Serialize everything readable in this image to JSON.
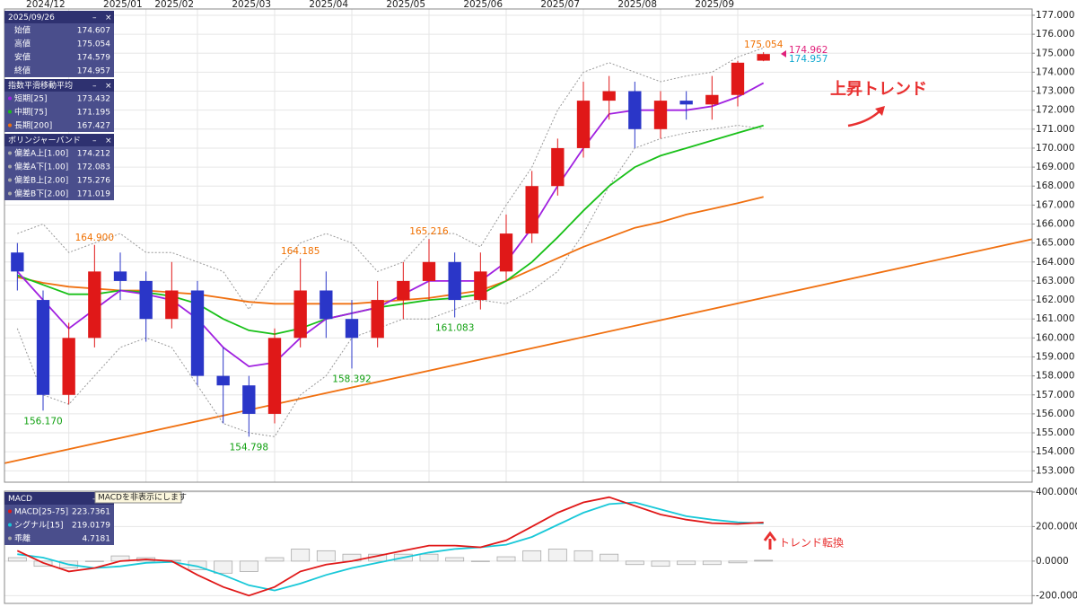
{
  "chart_data": [
    {
      "type": "candlestick",
      "categories": [
        null,
        null,
        "2024/12",
        null,
        null,
        "2025/01",
        null,
        "2025/02",
        null,
        null,
        "2025/03",
        null,
        null,
        "2025/04",
        null,
        null,
        "2025/05",
        null,
        null,
        "2025/06",
        null,
        null,
        "2025/07",
        null,
        null,
        "2025/08",
        null,
        null,
        "2025/09",
        null
      ],
      "ohlc": [
        [
          164.5,
          165.0,
          162.5,
          163.5
        ],
        [
          162.0,
          162.5,
          156.17,
          157.0
        ],
        [
          157.0,
          160.8,
          156.5,
          160.0
        ],
        [
          160.0,
          164.9,
          159.5,
          163.5
        ],
        [
          163.5,
          164.5,
          162.0,
          163.0
        ],
        [
          163.0,
          163.5,
          159.8,
          161.0
        ],
        [
          161.0,
          164.0,
          160.5,
          162.5
        ],
        [
          162.5,
          163.0,
          157.5,
          158.0
        ],
        [
          158.0,
          159.5,
          155.5,
          157.5
        ],
        [
          157.5,
          158.0,
          154.798,
          156.0
        ],
        [
          156.0,
          160.5,
          155.5,
          160.0
        ],
        [
          160.0,
          164.185,
          159.5,
          162.5
        ],
        [
          162.5,
          163.5,
          160.0,
          161.0
        ],
        [
          161.0,
          162.0,
          158.392,
          160.0
        ],
        [
          160.0,
          163.0,
          159.5,
          162.0
        ],
        [
          162.0,
          164.0,
          161.0,
          163.0
        ],
        [
          163.0,
          165.216,
          162.0,
          164.0
        ],
        [
          164.0,
          164.5,
          161.083,
          162.0
        ],
        [
          162.0,
          164.5,
          161.5,
          163.5
        ],
        [
          163.5,
          166.5,
          163.0,
          165.5
        ],
        [
          165.5,
          168.8,
          165.0,
          168.0
        ],
        [
          168.0,
          170.5,
          167.5,
          170.0
        ],
        [
          170.0,
          173.5,
          169.5,
          172.5
        ],
        [
          172.5,
          173.8,
          171.5,
          173.0
        ],
        [
          173.0,
          173.5,
          170.0,
          171.0
        ],
        [
          171.0,
          173.0,
          170.5,
          172.5
        ],
        [
          172.5,
          173.0,
          171.5,
          172.3
        ],
        [
          172.3,
          173.8,
          171.5,
          172.8
        ],
        [
          172.8,
          174.6,
          172.2,
          174.5
        ],
        [
          174.607,
          175.054,
          174.579,
          174.957
        ]
      ],
      "up_color": "#e01818",
      "down_color": "#2a36c8",
      "lines": [
        {
          "color": "#999999",
          "dash": true,
          "values": [
            165.5,
            166,
            164.5,
            165,
            165.5,
            164.5,
            164.5,
            164,
            163.5,
            161.5,
            163.5,
            165,
            165.5,
            165,
            163.5,
            164,
            165.5,
            165.5,
            164.8,
            167,
            169,
            172,
            174,
            174.5,
            174,
            173.5,
            173.8,
            174,
            174.8,
            175.276
          ]
        },
        {
          "color": "#999999",
          "dash": true,
          "values": [
            160.5,
            157,
            156.5,
            158,
            159.5,
            160,
            159.5,
            157.5,
            155.5,
            155,
            154.8,
            157,
            158,
            160,
            160.5,
            161,
            161,
            161.5,
            162,
            161.8,
            162.5,
            163.5,
            165.5,
            168,
            170,
            170.5,
            170.8,
            171,
            171.2,
            171.019
          ]
        },
        {
          "color": "#f07010",
          "dash": false,
          "values": [
            163.2,
            162.9,
            162.7,
            162.6,
            162.5,
            162.5,
            162.4,
            162.3,
            162.1,
            161.9,
            161.8,
            161.8,
            161.8,
            161.8,
            161.9,
            162,
            162.1,
            162.3,
            162.5,
            163,
            163.6,
            164.2,
            164.8,
            165.3,
            165.8,
            166.1,
            166.5,
            166.8,
            167.1,
            167.427
          ]
        },
        {
          "color": "#18c018",
          "dash": false,
          "values": [
            163.3,
            162.8,
            162.3,
            162.3,
            162.5,
            162.4,
            162.2,
            161.8,
            161,
            160.4,
            160.2,
            160.5,
            161,
            161.3,
            161.6,
            161.8,
            162,
            162.1,
            162.3,
            163,
            164,
            165.3,
            166.7,
            168,
            169,
            169.6,
            170,
            170.4,
            170.8,
            171.195
          ]
        },
        {
          "color": "#a020e0",
          "dash": false,
          "values": [
            163.5,
            162,
            160.5,
            161.5,
            162.5,
            162.3,
            162,
            161,
            159.5,
            158.5,
            158.7,
            160,
            161,
            161.3,
            161.6,
            162.3,
            163,
            163,
            163,
            164,
            165.8,
            168,
            170,
            171.8,
            172,
            172,
            172,
            172.2,
            172.7,
            173.432
          ]
        }
      ],
      "trend_line": {
        "color": "#f07010",
        "values": [
          153.4,
          165.2
        ]
      },
      "ylim": [
        152.4,
        177.33
      ],
      "yticks": [
        {
          "value": 153,
          "label": "153.000"
        },
        {
          "value": 154,
          "label": "154.000"
        },
        {
          "value": 155,
          "label": "155.000"
        },
        {
          "value": 156,
          "label": "156.000"
        },
        {
          "value": 157,
          "label": "157.000"
        },
        {
          "value": 158,
          "label": "158.000"
        },
        {
          "value": 159,
          "label": "159.000"
        },
        {
          "value": 160,
          "label": "160.000"
        },
        {
          "value": 161,
          "label": "161.000"
        },
        {
          "value": 162,
          "label": "162.000"
        },
        {
          "value": 163,
          "label": "163.000"
        },
        {
          "value": 164,
          "label": "164.000"
        },
        {
          "value": 165,
          "label": "165.000"
        },
        {
          "value": 166,
          "label": "166.000"
        },
        {
          "value": 167,
          "label": "167.000"
        },
        {
          "value": 168,
          "label": "168.000"
        },
        {
          "value": 169,
          "label": "169.000"
        },
        {
          "value": 170,
          "label": "170.000"
        },
        {
          "value": 171,
          "label": "171.000"
        },
        {
          "value": 172,
          "label": "172.000"
        },
        {
          "value": 173,
          "label": "173.000"
        },
        {
          "value": 174,
          "label": "174.000"
        },
        {
          "value": 175,
          "label": "175.000"
        },
        {
          "value": 176,
          "label": "176.000"
        },
        {
          "value": 177,
          "label": "177.000"
        }
      ],
      "grid": true,
      "annotations": [
        {
          "label": "164.900",
          "value": 164.9,
          "at": 3,
          "side": "above",
          "color": "#f07000"
        },
        {
          "label": "156.170",
          "value": 156.17,
          "at": 1,
          "side": "below",
          "color": "#10a010"
        },
        {
          "label": "154.798",
          "value": 154.798,
          "at": 9,
          "side": "below",
          "color": "#10a010"
        },
        {
          "label": "164.185",
          "value": 164.185,
          "at": 11,
          "side": "above",
          "color": "#f07000"
        },
        {
          "label": "158.392",
          "value": 158.392,
          "at": 13,
          "side": "below",
          "color": "#10a010"
        },
        {
          "label": "165.216",
          "value": 165.216,
          "at": 16,
          "side": "above",
          "color": "#f07000"
        },
        {
          "label": "161.083",
          "value": 161.083,
          "at": 17,
          "side": "below",
          "color": "#10a010"
        },
        {
          "label": "175.054",
          "value": 175.054,
          "at": 29,
          "side": "above",
          "color": "#f07000"
        }
      ],
      "last_prices": [
        {
          "label": "174.962",
          "value": 174.962,
          "color": "#e0207a"
        },
        {
          "label": "174.957",
          "value": 174.957,
          "color": "#10a8d0"
        }
      ],
      "note": "上昇トレンド"
    },
    {
      "type": "macd",
      "series": [
        {
          "color": "#aaaaaa",
          "style": "histogram",
          "values": [
            20,
            -30,
            -40,
            0,
            30,
            20,
            5,
            -50,
            -70,
            -60,
            20,
            70,
            60,
            40,
            40,
            40,
            40,
            20,
            0,
            25,
            60,
            70,
            60,
            40,
            -20,
            -30,
            -20,
            -20,
            -10,
            4.7181
          ]
        },
        {
          "color": "#18c8d8",
          "style": "line",
          "values": [
            40,
            20,
            -20,
            -40,
            -30,
            -10,
            -5,
            -30,
            -80,
            -140,
            -170,
            -130,
            -80,
            -40,
            -10,
            20,
            50,
            70,
            80,
            95,
            140,
            210,
            280,
            330,
            340,
            300,
            260,
            240,
            225,
            219.0179
          ]
        },
        {
          "color": "#e01818",
          "style": "line",
          "values": [
            60,
            -10,
            -60,
            -40,
            0,
            10,
            0,
            -80,
            -150,
            -200,
            -150,
            -60,
            -20,
            0,
            30,
            60,
            90,
            90,
            80,
            120,
            200,
            280,
            340,
            370,
            320,
            270,
            240,
            220,
            215,
            223.7361
          ]
        }
      ],
      "ylim": [
        -245,
        405
      ],
      "yticks": [
        {
          "value": 400,
          "label": "400.0000"
        },
        {
          "value": 200,
          "label": "200.0000"
        },
        {
          "value": 0,
          "label": "0.0000"
        },
        {
          "value": -200,
          "label": "-200.0000"
        }
      ],
      "grid": true,
      "note": "トレンド転換"
    }
  ],
  "info_panel": {
    "sections": [
      {
        "title": "2025/09/26",
        "rows": [
          {
            "label": "始値",
            "value": "174.607"
          },
          {
            "label": "高値",
            "value": "175.054"
          },
          {
            "label": "安値",
            "value": "174.579"
          },
          {
            "label": "終値",
            "value": "174.957"
          }
        ]
      },
      {
        "title": "指数平滑移動平均",
        "rows": [
          {
            "label": "短期[25]",
            "value": "173.432"
          },
          {
            "label": "中期[75]",
            "value": "171.195"
          },
          {
            "label": "長期[200]",
            "value": "167.427"
          }
        ]
      },
      {
        "title": "ボリンジャーバンド",
        "rows": [
          {
            "label": "偏差A上[1.00]",
            "value": "174.212"
          },
          {
            "label": "偏差A下[1.00]",
            "value": "172.083"
          },
          {
            "label": "偏差B上[2.00]",
            "value": "175.276"
          },
          {
            "label": "偏差B下[2.00]",
            "value": "171.019"
          }
        ]
      }
    ]
  },
  "macd_panel": {
    "sections": [
      {
        "title": "MACD",
        "rows": [
          {
            "label": "MACD[25-75]",
            "value": "223.7361"
          },
          {
            "label": "シグナル[15]",
            "value": "219.0179"
          },
          {
            "label": "乖離",
            "value": "4.7181"
          }
        ]
      }
    ]
  },
  "tooltip": "MACDを非表示にします"
}
